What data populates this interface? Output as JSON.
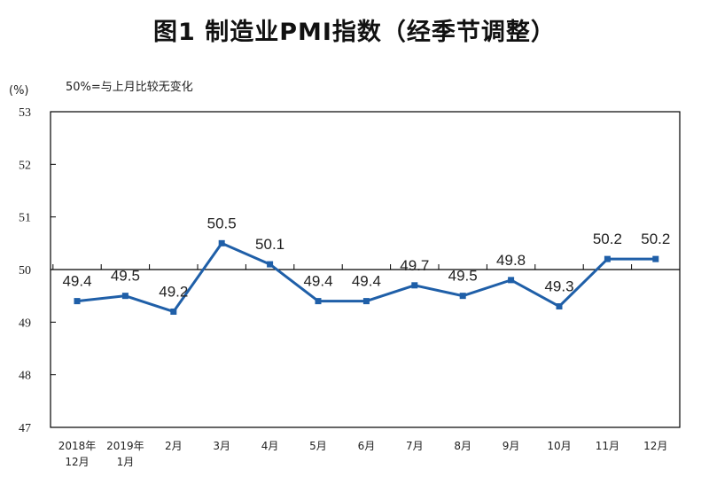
{
  "chart_data": {
    "type": "line",
    "title": "图1  制造业PMI指数（经季节调整）",
    "ylabel": "(%)",
    "annotation": "50%=与上月比较无变化",
    "ylim": [
      47,
      53
    ],
    "yticks": [
      47,
      48,
      49,
      50,
      51,
      52,
      53
    ],
    "reference_line": 50,
    "categories": [
      [
        "2018年",
        "12月"
      ],
      [
        "2019年",
        "1月"
      ],
      [
        "2月"
      ],
      [
        "3月"
      ],
      [
        "4月"
      ],
      [
        "5月"
      ],
      [
        "6月"
      ],
      [
        "7月"
      ],
      [
        "8月"
      ],
      [
        "9月"
      ],
      [
        "10月"
      ],
      [
        "11月"
      ],
      [
        "12月"
      ]
    ],
    "values": [
      49.4,
      49.5,
      49.2,
      50.5,
      50.1,
      49.4,
      49.4,
      49.7,
      49.5,
      49.8,
      49.3,
      50.2,
      50.2
    ],
    "value_labels": [
      "49.4",
      "49.5",
      "49.2",
      "50.5",
      "50.1",
      "49.4",
      "49.4",
      "49.7",
      "49.5",
      "49.8",
      "49.3",
      "50.2",
      "50.2"
    ],
    "grid": false,
    "colors": {
      "line": "#1f5fa8",
      "axis": "#000000"
    }
  }
}
